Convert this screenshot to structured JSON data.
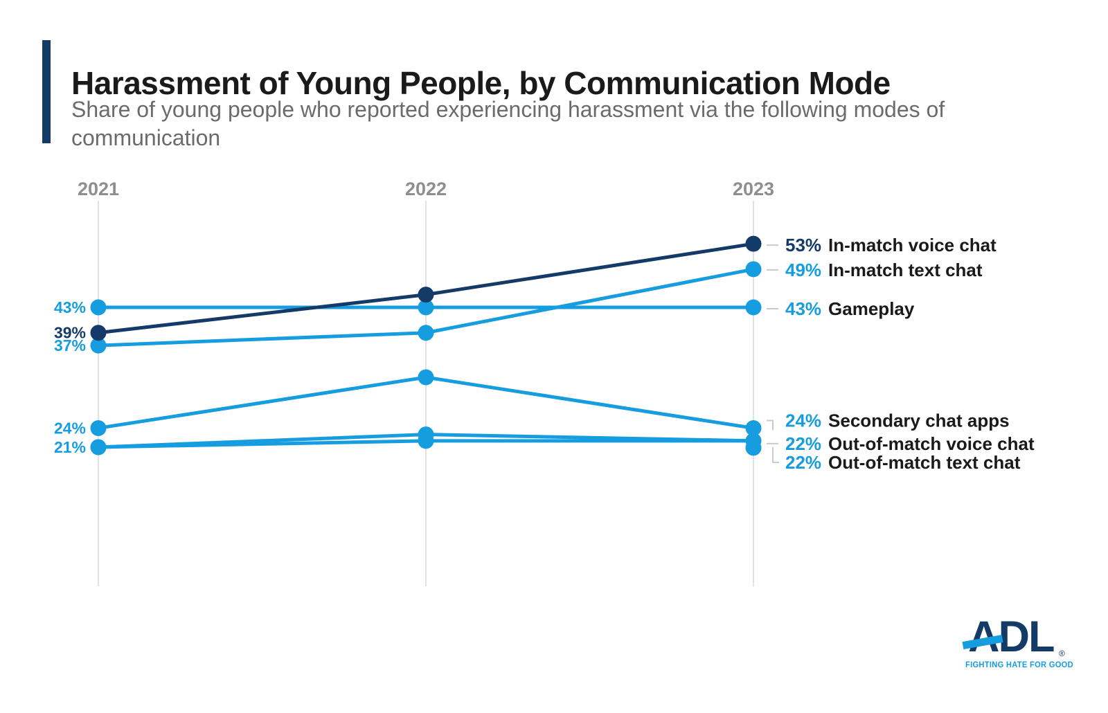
{
  "header": {
    "title": "Harassment of Young People, by Communication Mode",
    "subtitle_lines": [
      "Share of young people who reported experiencing harassment via the following modes of",
      "communication"
    ]
  },
  "chart_data": {
    "type": "line",
    "categories": [
      "2021",
      "2022",
      "2023"
    ],
    "unit": "%",
    "ylim": [
      0,
      60
    ],
    "grid": "vertical-year-axes-only",
    "legend_position": "right-of-last-point",
    "series": [
      {
        "name": "In-match voice chat",
        "values": [
          39,
          45,
          53
        ],
        "color": "#143a68"
      },
      {
        "name": "In-match text chat",
        "values": [
          37,
          39,
          49
        ],
        "color": "#169de0"
      },
      {
        "name": "Gameplay",
        "values": [
          43,
          43,
          43
        ],
        "color": "#169de0"
      },
      {
        "name": "Secondary chat apps",
        "values": [
          24,
          32,
          24
        ],
        "color": "#169de0"
      },
      {
        "name": "Out-of-match voice chat",
        "values": [
          21,
          23,
          22
        ],
        "color": "#169de0"
      },
      {
        "name": "Out-of-match text chat",
        "values": [
          21,
          22,
          22
        ],
        "color": "#169de0"
      }
    ],
    "left_labels": [
      {
        "text": "43%",
        "value": 43,
        "color": "#169de0"
      },
      {
        "text": "39%",
        "value": 39,
        "color": "#143a68"
      },
      {
        "text": "37%",
        "value": 37,
        "color": "#169de0"
      },
      {
        "text": "24%",
        "value": 24,
        "color": "#169de0"
      },
      {
        "text": "21%",
        "value": 21,
        "color": "#169de0"
      }
    ],
    "right_labels": [
      {
        "value_text": "53%",
        "name": "In-match voice chat",
        "value": 53,
        "value_color": "#143a68",
        "connector": "dash",
        "dy": 2
      },
      {
        "value_text": "49%",
        "name": "In-match text chat",
        "value": 49,
        "value_color": "#169de0",
        "connector": "dash",
        "dy": 1
      },
      {
        "value_text": "43%",
        "name": "Gameplay",
        "value": 43,
        "value_color": "#169de0",
        "connector": "dash",
        "dy": 2
      },
      {
        "value_text": "24%",
        "name": "Secondary chat apps",
        "value": 24,
        "value_color": "#169de0",
        "connector": "elbow-up",
        "dy": -11
      },
      {
        "value_text": "22%",
        "name": "Out-of-match voice chat",
        "value": 22,
        "value_color": "#169de0",
        "connector": "dash",
        "dy": 4
      },
      {
        "value_text": "22%",
        "name": "Out-of-match text chat",
        "value": 22,
        "value_color": "#169de0",
        "connector": "elbow-down",
        "dy": 31
      }
    ]
  },
  "colors": {
    "navy": "#143a68",
    "blue": "#169de0",
    "axis_gray": "#e2e2e2",
    "connector_gray": "#c9c9c9",
    "year_gray": "#8e8e8e",
    "name_text": "#1a1a1a"
  },
  "logo": {
    "name": "ADL",
    "registered": "®",
    "tagline": "FIGHTING HATE FOR GOOD"
  }
}
